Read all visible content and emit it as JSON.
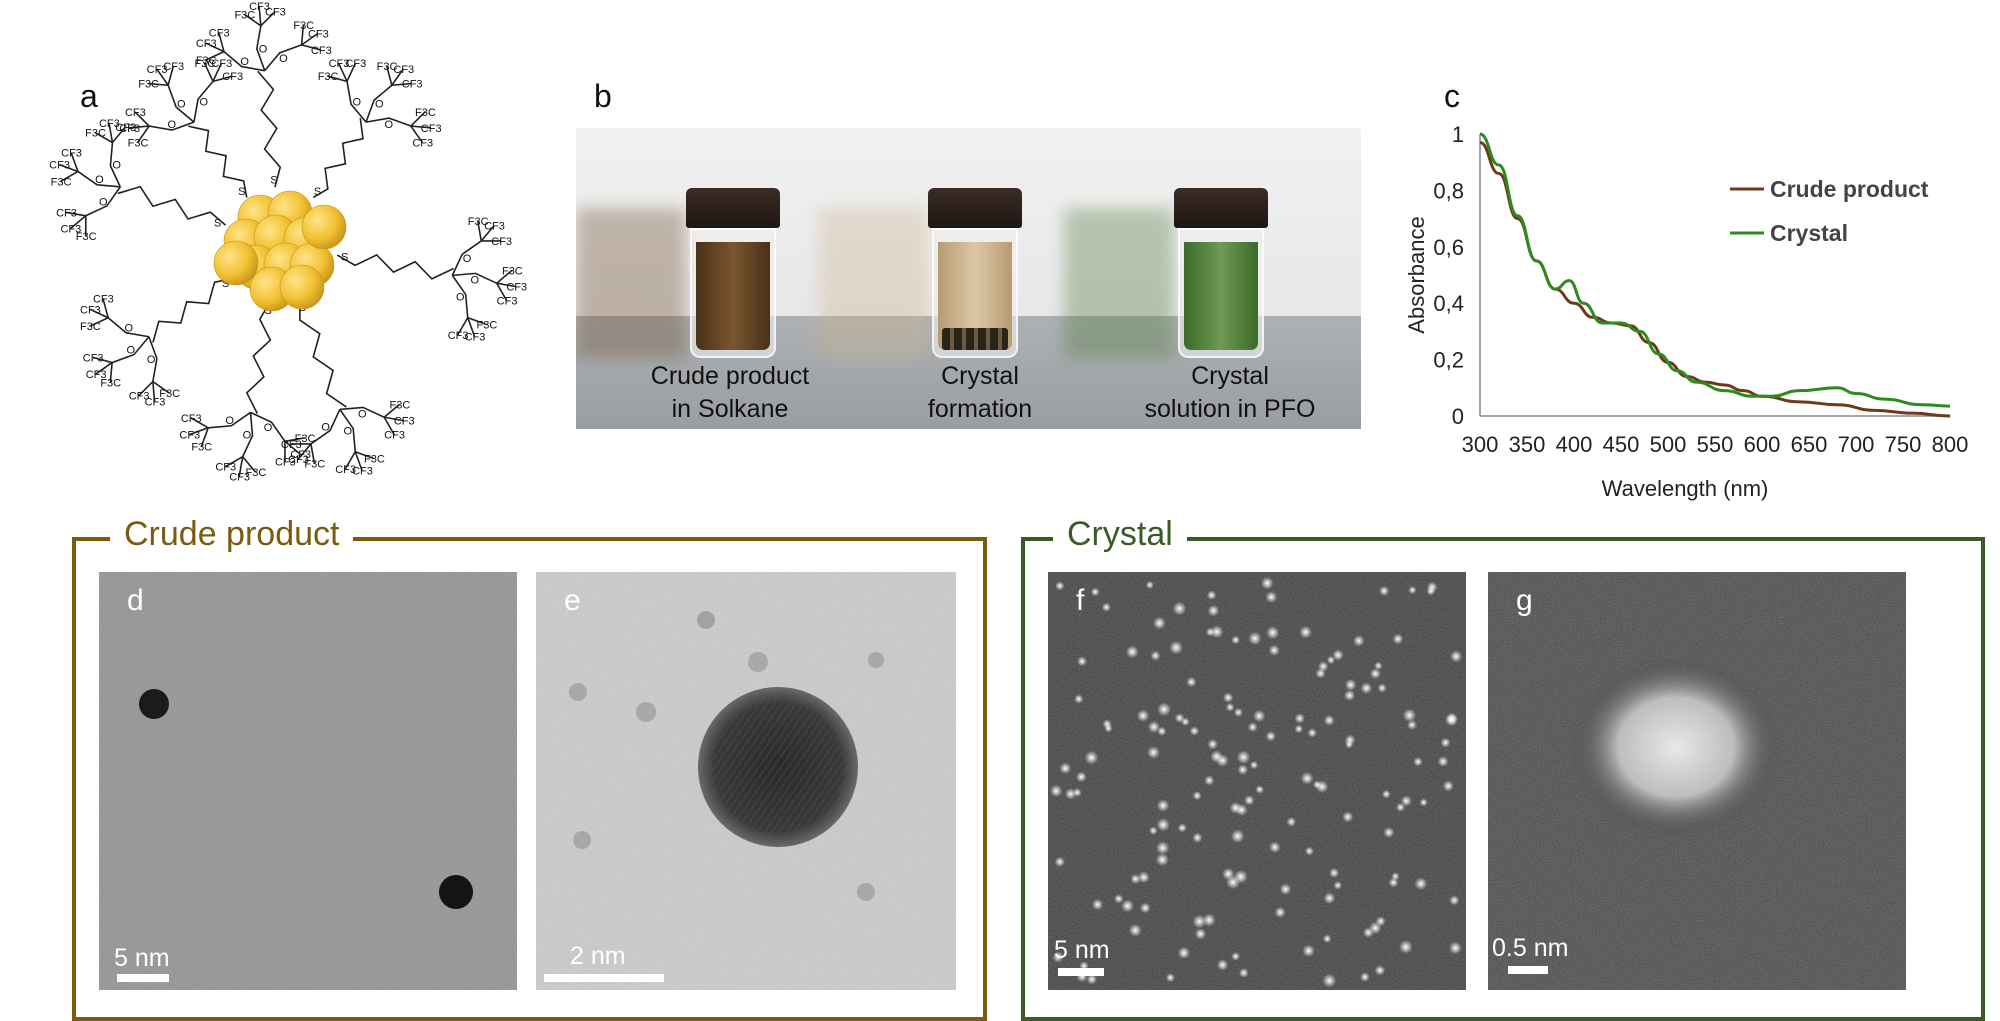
{
  "panel_labels": {
    "a": "a",
    "b": "b",
    "c": "c",
    "d": "d",
    "e": "e",
    "f": "f",
    "g": "g"
  },
  "molecule": {
    "ligand_groups": [
      "F3C",
      "CF3",
      "F3C",
      "O",
      "S"
    ]
  },
  "vials": [
    {
      "caption_line1": "Crude product",
      "caption_line2": "in Solkane",
      "liquid_color": "#6b4a2a"
    },
    {
      "caption_line1": "Crystal",
      "caption_line2": "formation",
      "liquid_color": "#cdb48d"
    },
    {
      "caption_line1": "Crystal",
      "caption_line2": "solution in PFO",
      "liquid_color": "#4f7a3a"
    }
  ],
  "chart_data": {
    "type": "line",
    "xlabel": "Wavelength (nm)",
    "ylabel": "Absorbance",
    "xlim": [
      300,
      800
    ],
    "ylim": [
      0,
      1
    ],
    "x_ticks": [
      "300",
      "350",
      "400",
      "450",
      "500",
      "550",
      "600",
      "650",
      "700",
      "750",
      "800"
    ],
    "y_ticks": [
      "0",
      "0,2",
      "0,4",
      "0,6",
      "0,8",
      "1"
    ],
    "legend_position": "top-right",
    "series": [
      {
        "name": "Crude product",
        "color": "#6e3a1c",
        "x": [
          300,
          320,
          340,
          360,
          380,
          400,
          420,
          440,
          460,
          480,
          500,
          520,
          540,
          560,
          580,
          600,
          640,
          680,
          720,
          760,
          800
        ],
        "y": [
          0.97,
          0.86,
          0.7,
          0.55,
          0.45,
          0.4,
          0.35,
          0.33,
          0.32,
          0.26,
          0.19,
          0.14,
          0.12,
          0.11,
          0.09,
          0.07,
          0.05,
          0.04,
          0.02,
          0.01,
          0.0
        ]
      },
      {
        "name": "Crystal",
        "color": "#2f8a1e",
        "x": [
          300,
          320,
          340,
          360,
          380,
          395,
          410,
          430,
          450,
          470,
          490,
          510,
          530,
          560,
          590,
          610,
          640,
          680,
          700,
          730,
          770,
          800
        ],
        "y": [
          1.0,
          0.89,
          0.71,
          0.55,
          0.45,
          0.48,
          0.4,
          0.33,
          0.33,
          0.3,
          0.22,
          0.16,
          0.12,
          0.09,
          0.07,
          0.07,
          0.09,
          0.1,
          0.08,
          0.06,
          0.04,
          0.035
        ]
      }
    ]
  },
  "groups": {
    "crude": {
      "title": "Crude product",
      "color": "#7a5c10"
    },
    "crystal": {
      "title": "Crystal",
      "color": "#3c5a26"
    }
  },
  "micrographs": {
    "d": {
      "scale_text": "5 nm"
    },
    "e": {
      "scale_text": "2 nm"
    },
    "f": {
      "scale_text": "5 nm"
    },
    "g": {
      "scale_text": "0.5 nm"
    }
  }
}
